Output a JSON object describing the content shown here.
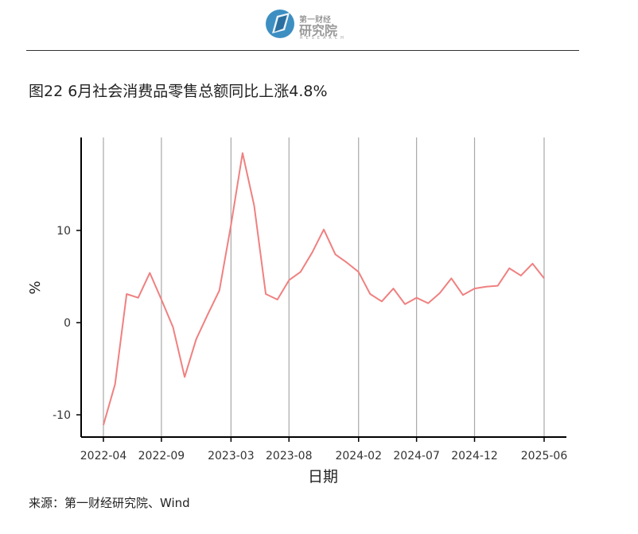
{
  "header": {
    "logo_top": "第一财经",
    "logo_main": "研究院",
    "logo_sub": "RESEARCH"
  },
  "figure": {
    "title": "图22 6月社会消费品零售总额同比上涨4.8%",
    "source": "来源：第一财经研究院、Wind"
  },
  "chart_data": {
    "type": "line",
    "title": "",
    "xlabel": "日期",
    "ylabel": "%",
    "x": [
      "2022-04",
      "2022-05",
      "2022-06",
      "2022-07",
      "2022-08",
      "2022-09",
      "2022-10",
      "2022-11",
      "2022-12",
      "2023-01",
      "2023-02",
      "2023-03",
      "2023-04",
      "2023-05",
      "2023-06",
      "2023-07",
      "2023-08",
      "2023-09",
      "2023-10",
      "2023-11",
      "2023-12",
      "2024-01",
      "2024-02",
      "2024-03",
      "2024-04",
      "2024-05",
      "2024-06",
      "2024-07",
      "2024-08",
      "2024-09",
      "2024-10",
      "2024-11",
      "2024-12",
      "2025-01",
      "2025-02",
      "2025-03",
      "2025-04",
      "2025-05",
      "2025-06"
    ],
    "series": [
      {
        "name": "",
        "color": "#f08080",
        "values": [
          -11.1,
          -6.7,
          3.1,
          2.7,
          5.4,
          2.5,
          -0.5,
          -5.9,
          -1.8,
          0.9,
          3.5,
          10.6,
          18.4,
          12.7,
          3.1,
          2.5,
          4.6,
          5.5,
          7.6,
          10.1,
          7.4,
          6.5,
          5.5,
          3.1,
          2.3,
          3.7,
          2.0,
          2.7,
          2.1,
          3.2,
          4.8,
          3.0,
          3.7,
          3.9,
          4.0,
          5.9,
          5.1,
          6.4,
          4.8
        ]
      }
    ],
    "xticks": [
      "2022-04",
      "2022-09",
      "2023-03",
      "2023-08",
      "2024-02",
      "2024-07",
      "2024-12",
      "2025-06"
    ],
    "yticks": [
      -10,
      0,
      10
    ],
    "ylim": [
      -12.5,
      20
    ],
    "grid": "vertical",
    "legend": "none"
  }
}
